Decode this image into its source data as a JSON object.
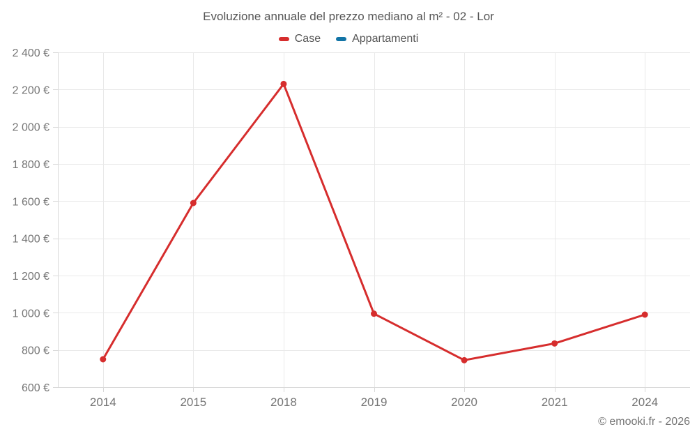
{
  "title": "Evoluzione annuale del prezzo mediano al m² - 02 - Lor",
  "footer": "© emooki.fr - 2026",
  "legend": {
    "items": [
      {
        "label": "Case",
        "color": "#d62d2d"
      },
      {
        "label": "Appartamenti",
        "color": "#1274a6"
      }
    ]
  },
  "colors": {
    "grid": "#e9e9e9",
    "axis": "#d9d9d9",
    "tick_label": "#757575",
    "title_text": "#565656"
  },
  "chart_data": {
    "type": "line",
    "title": "Evoluzione annuale del prezzo mediano al m² - 02 - Lor",
    "categories": [
      "2014",
      "2015",
      "2018",
      "2019",
      "2020",
      "2021",
      "2024"
    ],
    "series": [
      {
        "name": "Case",
        "color": "#d62d2d",
        "values": [
          750,
          1590,
          2230,
          995,
          745,
          835,
          990
        ]
      },
      {
        "name": "Appartamenti",
        "color": "#1274a6",
        "values": []
      }
    ],
    "ylim": [
      600,
      2400
    ],
    "yticks": [
      600,
      800,
      1000,
      1200,
      1400,
      1600,
      1800,
      2000,
      2200,
      2400
    ],
    "ytick_suffix": " €",
    "xlabel": "",
    "ylabel": "",
    "grid": true,
    "legend_position": "top"
  }
}
